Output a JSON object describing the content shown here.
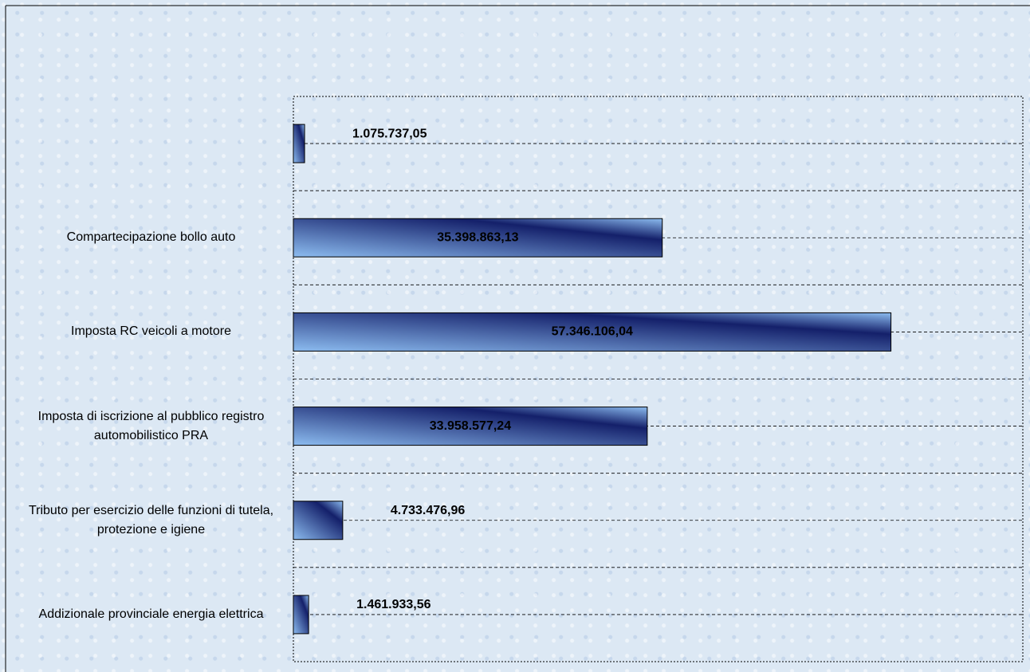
{
  "chart_data": {
    "type": "bar",
    "orientation": "horizontal",
    "categories": [
      null,
      "Compartecipazione bollo auto",
      "Imposta RC veicoli a motore",
      "Imposta di iscrizione al pubblico registro automobilistico PRA",
      "Tributo per esercizio delle funzioni di tutela, protezione e igiene",
      "Addizionale provinciale energia elettrica"
    ],
    "values": [
      1075737.05,
      35398863.13,
      57346106.04,
      33958577.24,
      4733476.96,
      1461933.56
    ],
    "value_labels": [
      "1.075.737,05",
      "35.398.863,13",
      "57.346.106,04",
      "33.958.577,24",
      "4.733.476,96",
      "1.461.933,56"
    ],
    "color": "#8cbcf0",
    "xlim": [
      0,
      70000000
    ]
  }
}
